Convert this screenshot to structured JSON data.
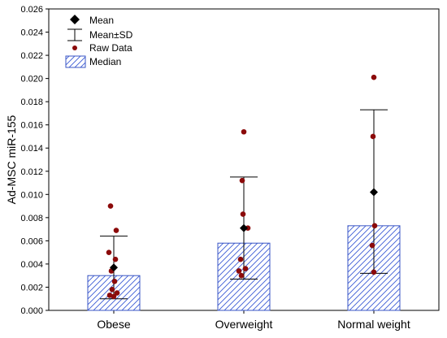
{
  "chart_data": {
    "type": "bar",
    "ylabel": "Ad-MSC miR-155",
    "xlabel": "",
    "ylim": [
      0,
      0.026
    ],
    "y_ticks": [
      "0.000",
      "0.002",
      "0.004",
      "0.006",
      "0.008",
      "0.010",
      "0.012",
      "0.014",
      "0.016",
      "0.018",
      "0.020",
      "0.022",
      "0.024",
      "0.026"
    ],
    "categories": [
      "Obese",
      "Overweight",
      "Normal weight"
    ],
    "median": [
      0.003,
      0.0058,
      0.0073
    ],
    "mean": [
      0.0037,
      0.0071,
      0.0102
    ],
    "mean_minus_sd": [
      0.001,
      0.0027,
      0.0032
    ],
    "mean_plus_sd": [
      0.0064,
      0.0115,
      0.0173
    ],
    "raw_data": [
      [
        0.009,
        0.0069,
        0.005,
        0.0044,
        0.0034,
        0.0025,
        0.0018,
        0.0015,
        0.0013,
        0.0012
      ],
      [
        0.0154,
        0.0112,
        0.0083,
        0.0071,
        0.0044,
        0.0036,
        0.0034,
        0.003
      ],
      [
        0.0201,
        0.015,
        0.0073,
        0.0056,
        0.0033
      ]
    ],
    "legend": {
      "position": "top-left",
      "items": [
        "Mean",
        "Mean±SD",
        "Raw Data",
        "Median"
      ]
    },
    "colors": {
      "bar_fill_hatch": "#3b5bd6",
      "bar_border": "#3a56c4",
      "raw_point": "#8b0a0a",
      "mean_marker": "#000000",
      "axis": "#000000"
    },
    "grid": false
  }
}
